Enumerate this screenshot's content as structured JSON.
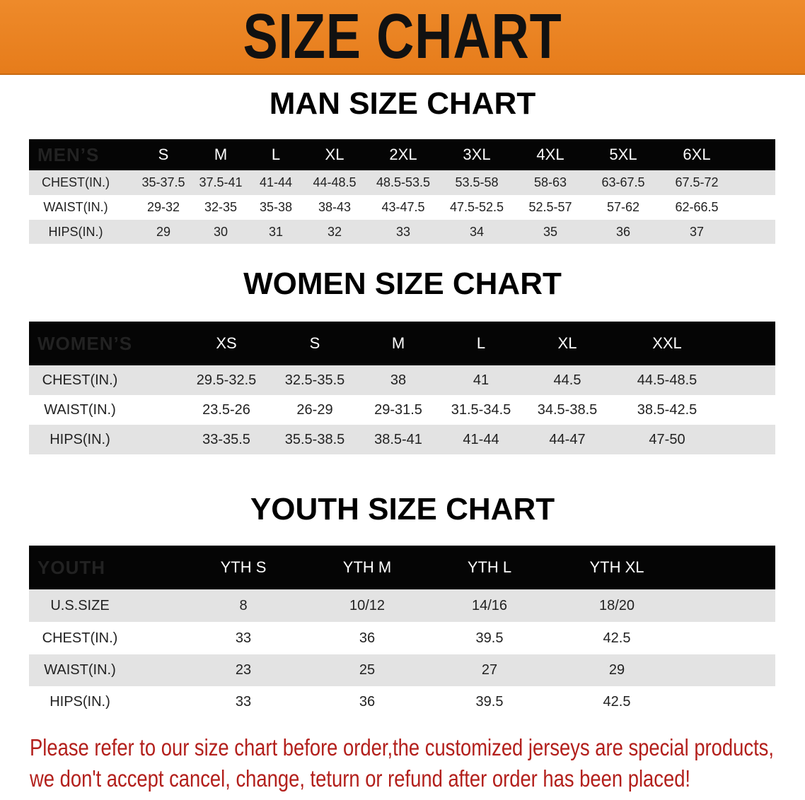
{
  "banner": {
    "title": "SIZE CHART",
    "color": "#e9821f"
  },
  "men": {
    "title": "MAN SIZE CHART",
    "header": [
      "MEN’S",
      "S",
      "M",
      "L",
      "XL",
      "2XL",
      "3XL",
      "4XL",
      "5XL",
      "6XL"
    ],
    "rows": [
      [
        "CHEST(IN.)",
        "35-37.5",
        "37.5-41",
        "41-44",
        "44-48.5",
        "48.5-53.5",
        "53.5-58",
        "58-63",
        "63-67.5",
        "67.5-72"
      ],
      [
        "WAIST(IN.)",
        "29-32",
        "32-35",
        "35-38",
        "38-43",
        "43-47.5",
        "47.5-52.5",
        "52.5-57",
        "57-62",
        "62-66.5"
      ],
      [
        "HIPS(IN.)",
        "29",
        "30",
        "31",
        "32",
        "33",
        "34",
        "35",
        "36",
        "37"
      ]
    ]
  },
  "women": {
    "title": "WOMEN SIZE CHART",
    "header": [
      "WOMEN’S",
      "XS",
      "S",
      "M",
      "L",
      "XL",
      "XXL"
    ],
    "rows": [
      [
        "CHEST(IN.)",
        "29.5-32.5",
        "32.5-35.5",
        "38",
        "41",
        "44.5",
        "44.5-48.5"
      ],
      [
        "WAIST(IN.)",
        "23.5-26",
        "26-29",
        "29-31.5",
        "31.5-34.5",
        "34.5-38.5",
        "38.5-42.5"
      ],
      [
        "HIPS(IN.)",
        "33-35.5",
        "35.5-38.5",
        "38.5-41",
        "41-44",
        "44-47",
        "47-50"
      ]
    ]
  },
  "youth": {
    "title": "YOUTH SIZE CHART",
    "header": [
      "YOUTH",
      "YTH S",
      "YTH M",
      "YTH L",
      "YTH XL"
    ],
    "rows": [
      [
        "U.S.SIZE",
        "8",
        "10/12",
        "14/16",
        "18/20"
      ],
      [
        "CHEST(IN.)",
        "33",
        "36",
        "39.5",
        "42.5"
      ],
      [
        "WAIST(IN.)",
        "23",
        "25",
        "27",
        "29"
      ],
      [
        "HIPS(IN.)",
        "33",
        "36",
        "39.5",
        "42.5"
      ]
    ]
  },
  "notice": {
    "line1": "Please refer to our size chart before order,the customized jerseys are special products,",
    "line2": "we don't accept cancel, change, teturn or refund after order has been placed!",
    "color": "#b3201c"
  }
}
